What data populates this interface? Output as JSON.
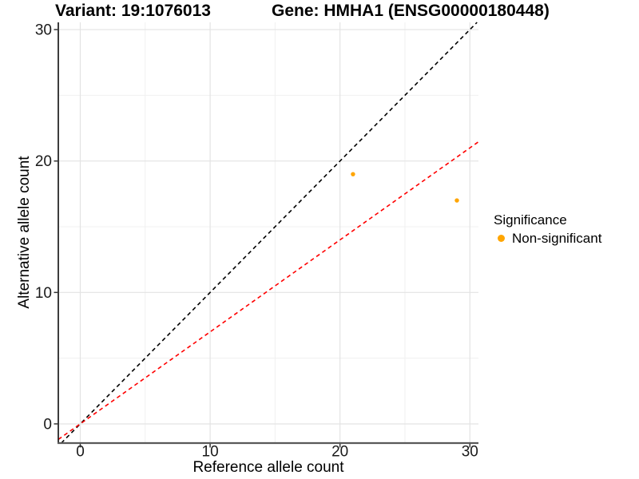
{
  "titles": {
    "variant": "Variant: 19:1076013",
    "gene": "Gene: HMHA1 (ENSG00000180448)"
  },
  "legend": {
    "title": "Significance",
    "items": [
      {
        "label": "Non-significant",
        "color": "#FFA500",
        "marker": "circle"
      }
    ]
  },
  "chart_data": {
    "type": "scatter",
    "title_left": "Variant: 19:1076013",
    "title_right": "Gene: HMHA1 (ENSG00000180448)",
    "xlabel": "Reference allele count",
    "ylabel": "Alternative allele count",
    "xlim": [
      -1.69,
      30.66
    ],
    "ylim": [
      -1.46,
      30.55
    ],
    "x_ticks": [
      0,
      10,
      20,
      30
    ],
    "y_ticks": [
      0,
      10,
      20,
      30
    ],
    "x_minor_ticks": [
      5,
      15,
      25
    ],
    "y_minor_ticks": [
      5,
      15,
      25
    ],
    "grid": true,
    "legend_position": "right",
    "series": [
      {
        "name": "Non-significant",
        "color": "#FFA500",
        "marker": "circle",
        "points": [
          {
            "x": 21,
            "y": 19
          },
          {
            "x": 29,
            "y": 17
          }
        ]
      }
    ],
    "reference_lines": [
      {
        "name": "identity-line",
        "slope": 1,
        "intercept": 0,
        "color": "#000000",
        "dash": "dashed"
      },
      {
        "name": "ratio-line",
        "slope": 0.7,
        "intercept": 0,
        "color": "#FF0000",
        "dash": "dashed"
      }
    ],
    "colors": {
      "point": "#FFA500",
      "identity_line": "#000000",
      "ratio_line": "#FF0000",
      "grid_major": "#e3e3e3",
      "grid_minor": "#f0f0f0",
      "axis_line": "#333333",
      "tick": "#333333",
      "text": "#000000"
    }
  }
}
